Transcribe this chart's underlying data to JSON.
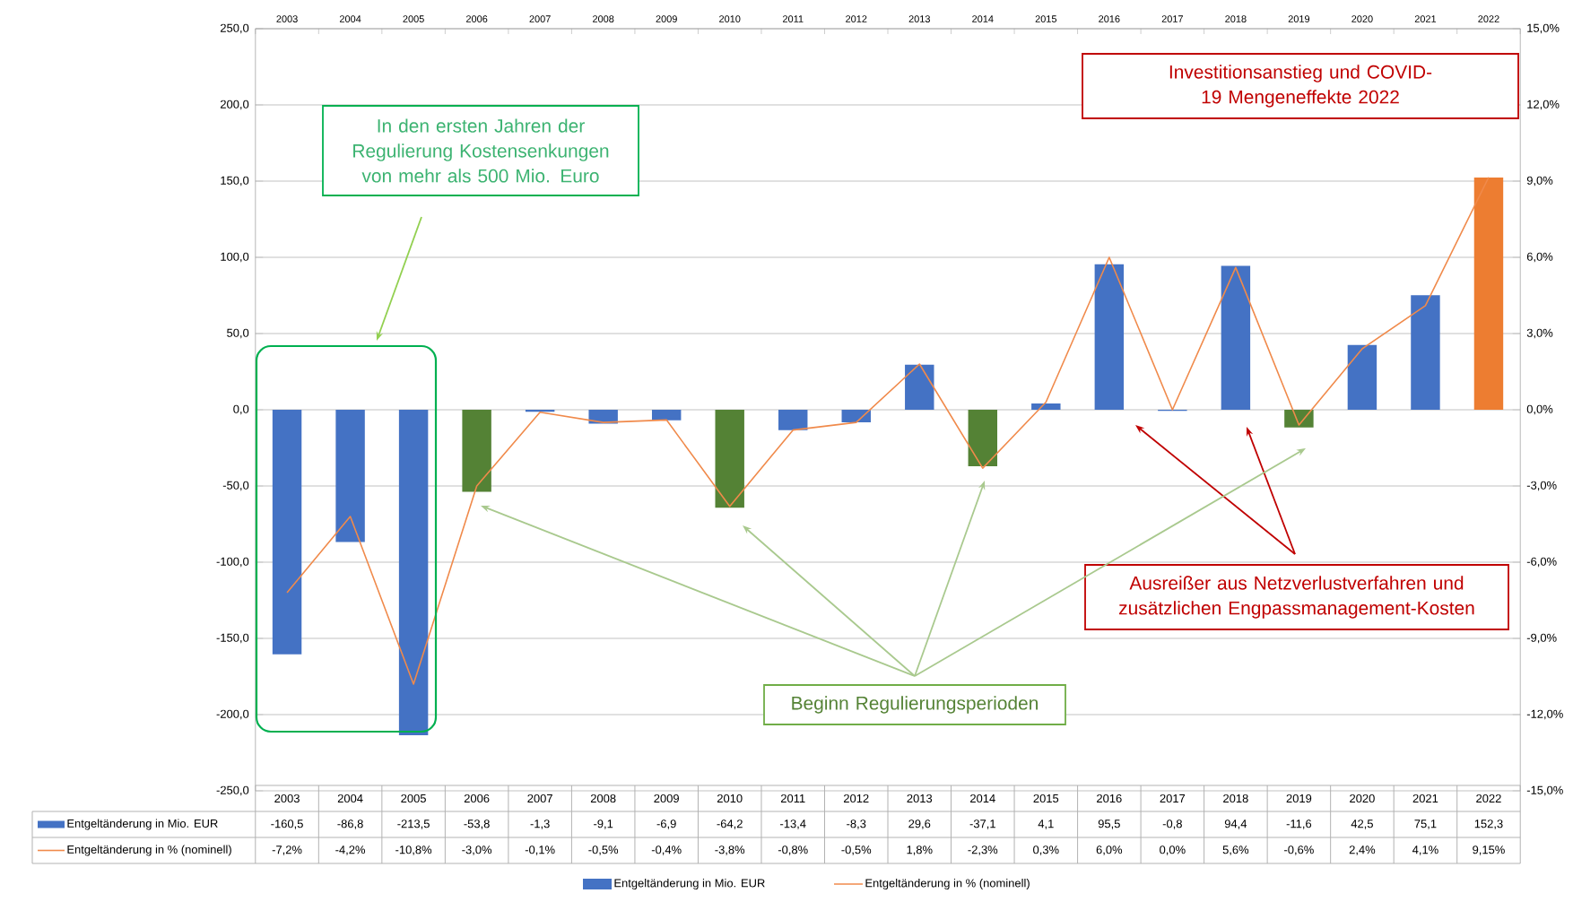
{
  "chart_data": {
    "type": "bar",
    "categories": [
      "2003",
      "2004",
      "2005",
      "2006",
      "2007",
      "2008",
      "2009",
      "2010",
      "2011",
      "2012",
      "2013",
      "2014",
      "2015",
      "2016",
      "2017",
      "2018",
      "2019",
      "2020",
      "2021",
      "2022"
    ],
    "series": [
      {
        "name": "Entgeltänderung in Mio. EUR",
        "color": "#4472c4",
        "colors": [
          "#4472c4",
          "#4472c4",
          "#4472c4",
          "#548235",
          "#4472c4",
          "#4472c4",
          "#4472c4",
          "#548235",
          "#4472c4",
          "#4472c4",
          "#4472c4",
          "#548235",
          "#4472c4",
          "#4472c4",
          "#4472c4",
          "#4472c4",
          "#548235",
          "#4472c4",
          "#4472c4",
          "#ed7d31"
        ],
        "values": [
          -160.5,
          -86.8,
          -213.5,
          -53.8,
          -1.3,
          -9.1,
          -6.9,
          -64.2,
          -13.4,
          -8.3,
          29.6,
          -37.1,
          4.1,
          95.5,
          -0.8,
          94.4,
          -11.6,
          42.5,
          75.1,
          152.3
        ],
        "value_labels": [
          "-160,5",
          "-86,8",
          "-213,5",
          "-53,8",
          "-1,3",
          "-9,1",
          "-6,9",
          "-64,2",
          "-13,4",
          "-8,3",
          "29,6",
          "-37,1",
          "4,1",
          "95,5",
          "-0,8",
          "94,4",
          "-11,6",
          "42,5",
          "75,1",
          "152,3"
        ]
      },
      {
        "name": "Entgeltänderung in % (nominell)",
        "type": "line",
        "axis": "y2",
        "color": "#f08a4b",
        "values": [
          -7.2,
          -4.2,
          -10.8,
          -3.0,
          -0.1,
          -0.5,
          -0.4,
          -3.8,
          -0.8,
          -0.5,
          1.8,
          -2.3,
          0.3,
          6.0,
          0.0,
          5.6,
          -0.6,
          2.4,
          4.1,
          9.15
        ],
        "value_labels": [
          "-7,2%",
          "-4,2%",
          "-10,8%",
          "-3,0%",
          "-0,1%",
          "-0,5%",
          "-0,4%",
          "-3,8%",
          "-0,8%",
          "-0,5%",
          "1,8%",
          "-2,3%",
          "0,3%",
          "6,0%",
          "0,0%",
          "5,6%",
          "-0,6%",
          "2,4%",
          "4,1%",
          "9,15%"
        ]
      }
    ],
    "ylim": [
      -250,
      250
    ],
    "yticks": [
      {
        "value": -250,
        "label": "-250,0"
      },
      {
        "value": -200,
        "label": "-200,0"
      },
      {
        "value": -150,
        "label": "-150,0"
      },
      {
        "value": -100,
        "label": "-100,0"
      },
      {
        "value": -50,
        "label": "-50,0"
      },
      {
        "value": 0,
        "label": "0,0"
      },
      {
        "value": 50,
        "label": "50,0"
      },
      {
        "value": 100,
        "label": "100,0"
      },
      {
        "value": 150,
        "label": "150,0"
      },
      {
        "value": 200,
        "label": "200,0"
      },
      {
        "value": 250,
        "label": "250,0"
      }
    ],
    "y2lim": [
      -15,
      15
    ],
    "y2ticks": [
      {
        "value": -15,
        "label": "-15,0%"
      },
      {
        "value": -12,
        "label": "-12,0%"
      },
      {
        "value": -9,
        "label": "-9,0%"
      },
      {
        "value": -6,
        "label": "-6,0%"
      },
      {
        "value": -3,
        "label": "-3,0%"
      },
      {
        "value": 0,
        "label": "0,0%"
      },
      {
        "value": 3,
        "label": "3,0%"
      },
      {
        "value": 6,
        "label": "6,0%"
      },
      {
        "value": 9,
        "label": "9,0%"
      },
      {
        "value": 12,
        "label": "12,0%"
      },
      {
        "value": 15,
        "label": "15,0%"
      }
    ],
    "grid": "y",
    "legend": "bottom",
    "marker": "none",
    "line_style": "solid",
    "annotations": [
      "In den ersten Jahren der Regulierung Kostensenkungen von mehr als 500 Mio. Euro",
      "Investitionsanstieg und COVID-19 Mengeneffekte 2022",
      "Ausreißer aus Netzverlustverfahren und zusätzlichen Engpassmanagement-Kosten",
      "Beginn Regulierungsperioden"
    ]
  }
}
